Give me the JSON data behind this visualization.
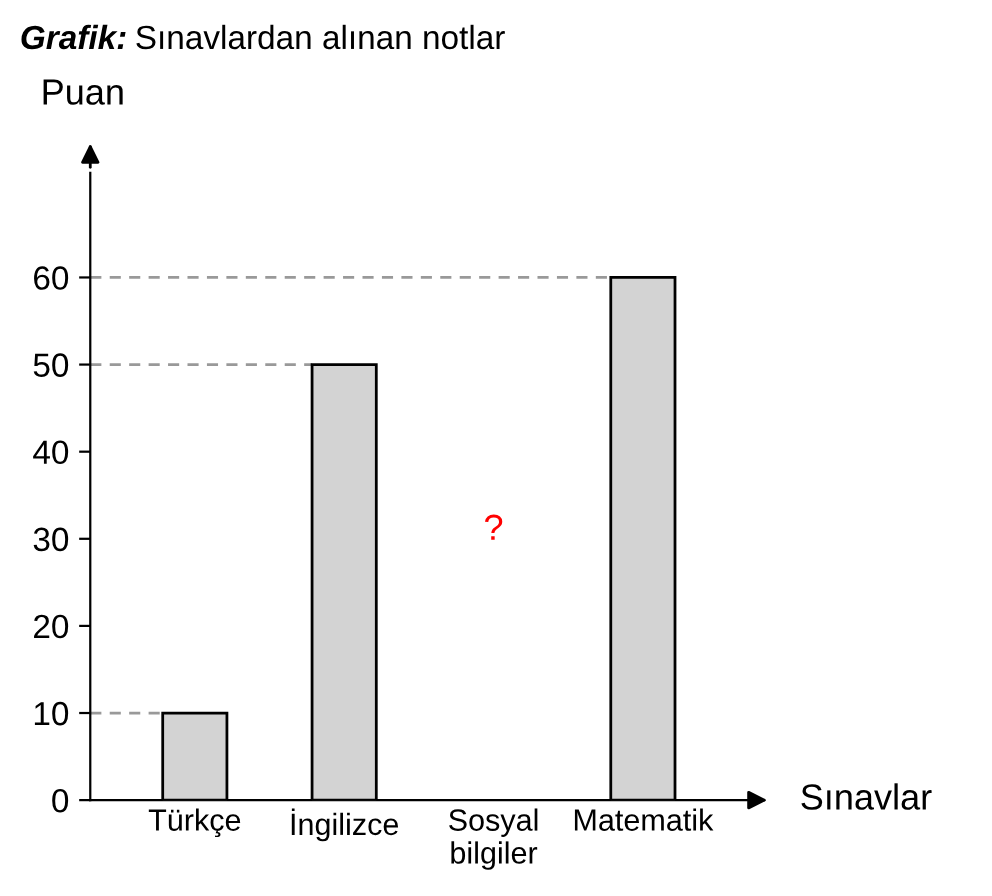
{
  "chart_data": {
    "type": "bar",
    "title": "Grafik: Sınavlardan alınan notlar",
    "xlabel": "Sınavlar",
    "ylabel": "Puan",
    "categories": [
      "Türkçe",
      "İngilizce",
      "Sosyal bilgiler",
      "Matematik"
    ],
    "values": [
      10,
      50,
      null,
      60
    ],
    "color": "#d3d3d3",
    "ylim": [
      0,
      72
    ],
    "yticks": [
      0,
      10,
      20,
      30,
      40,
      50,
      60
    ],
    "grid": false,
    "ref_lines": [
      {
        "axis": "y",
        "value": 10,
        "line_style": "dashed",
        "color": "#999999"
      },
      {
        "axis": "y",
        "value": 50,
        "line_style": "dashed",
        "color": "#999999"
      },
      {
        "axis": "y",
        "value": 60,
        "line_style": "dashed",
        "color": "#999999"
      }
    ],
    "annotations": [
      "?"
    ]
  }
}
